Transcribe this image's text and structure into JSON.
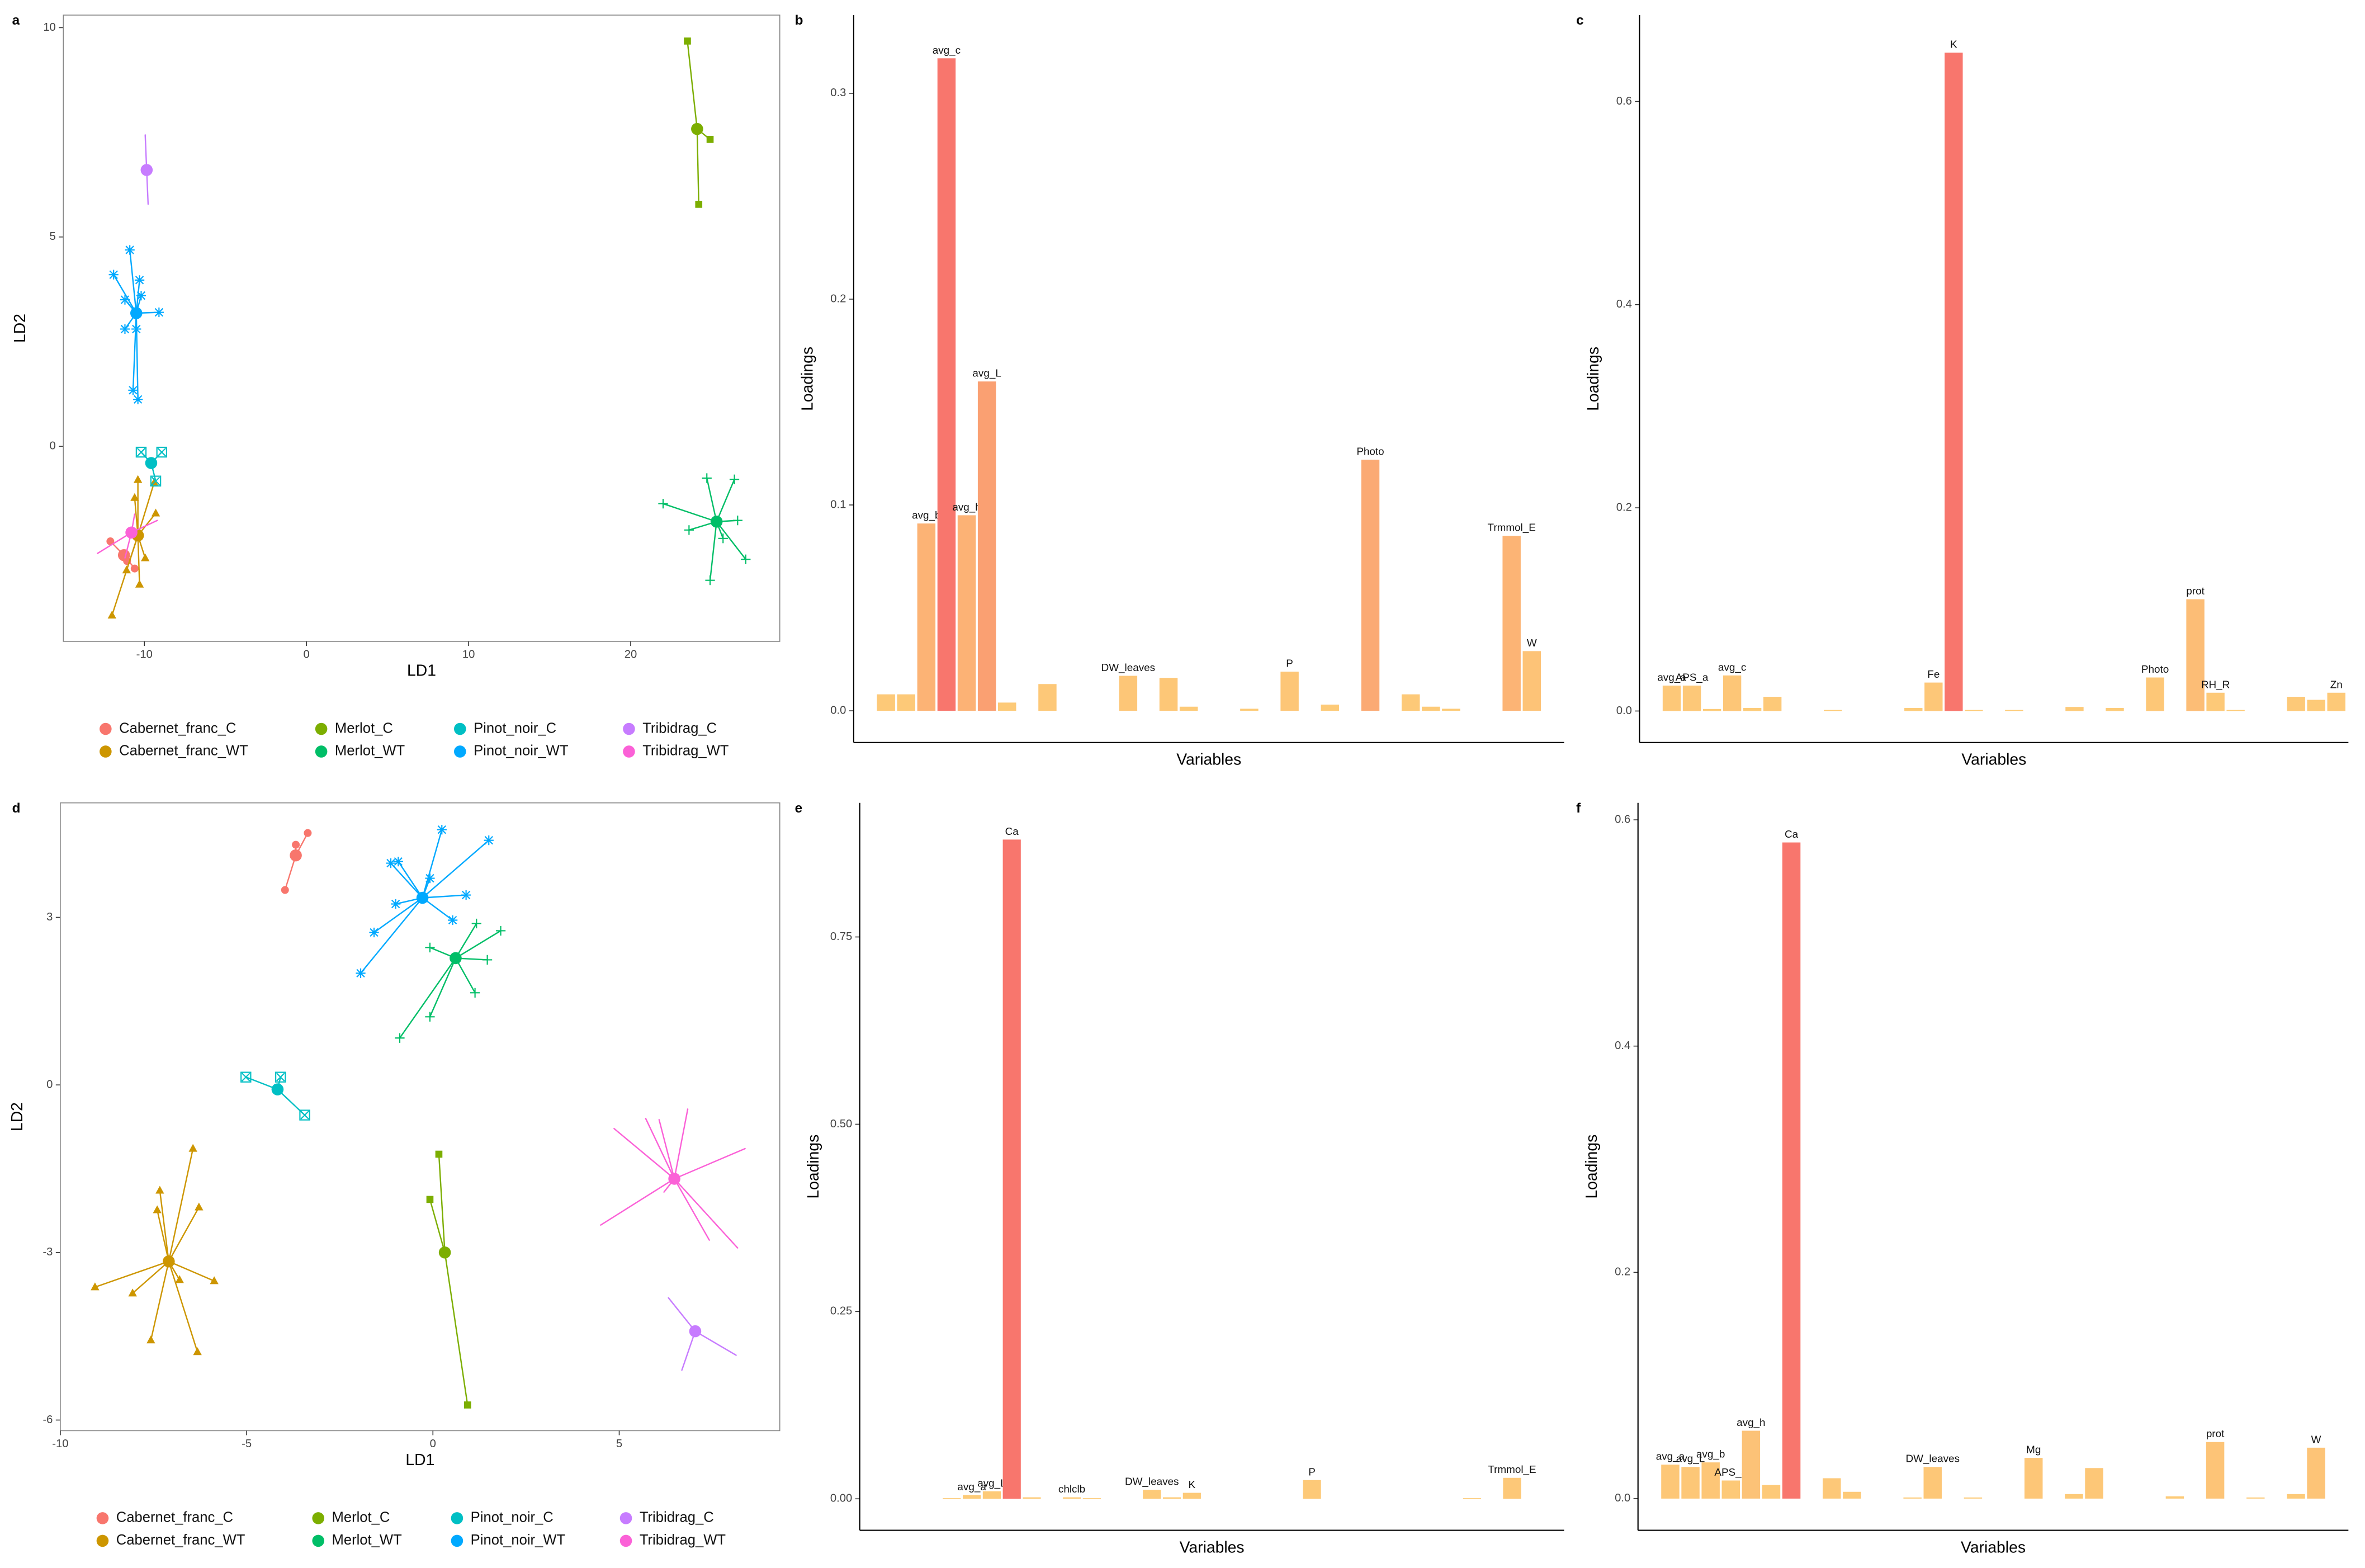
{
  "chart_data": [
    {
      "type": "scatter",
      "panel": "a",
      "xlabel": "LD1",
      "ylabel": "LD2",
      "xlim": [
        -15.0,
        29.2
      ],
      "ylim": [
        -4.66,
        10.3
      ],
      "xticks": [
        -10,
        0,
        10,
        20
      ],
      "yticks": [
        0,
        5,
        10
      ],
      "series": [
        {
          "name": "Cabernet_franc_C",
          "color": "#f8766d",
          "shape": "circle",
          "centroid_x": -11.26,
          "centroid_y": -2.6,
          "x": [
            -12.1,
            -10.6,
            -11.07
          ],
          "y": [
            -2.27,
            -2.92,
            -2.74
          ]
        },
        {
          "name": "Cabernet_franc_WT",
          "color": "#cd9600",
          "shape": "triangle",
          "centroid_x": -10.4,
          "centroid_y": -2.13,
          "x": [
            -10.4,
            -9.4,
            -9.3,
            -10.6,
            -9.95,
            -10.3,
            -12.0,
            -11.1
          ],
          "y": [
            -0.8,
            -0.87,
            -1.6,
            -1.23,
            -2.67,
            -3.3,
            -4.04,
            -2.96
          ]
        },
        {
          "name": "Merlot_C",
          "color": "#7cae00",
          "shape": "square",
          "centroid_x": 24.1,
          "centroid_y": 7.58,
          "x": [
            23.5,
            24.9,
            24.2
          ],
          "y": [
            9.68,
            7.33,
            5.78
          ]
        },
        {
          "name": "Merlot_WT",
          "color": "#00be67",
          "shape": "plus",
          "centroid_x": 25.3,
          "centroid_y": -1.8,
          "x": [
            22.0,
            24.7,
            26.4,
            26.6,
            27.1,
            24.9,
            23.6,
            25.7
          ],
          "y": [
            -1.37,
            -0.76,
            -0.79,
            -1.77,
            -2.7,
            -3.2,
            -2.0,
            -2.2
          ]
        },
        {
          "name": "Pinot_noir_C",
          "color": "#00bfc4",
          "shape": "square-cross",
          "centroid_x": -9.58,
          "centroid_y": -0.4,
          "x": [
            -10.2,
            -8.93,
            -9.3
          ],
          "y": [
            -0.14,
            -0.14,
            -0.83
          ]
        },
        {
          "name": "Pinot_noir_WT",
          "color": "#00a9ff",
          "shape": "asterisk",
          "centroid_x": -10.5,
          "centroid_y": 3.18,
          "x": [
            -10.9,
            -11.9,
            -10.3,
            -11.2,
            -10.2,
            -9.1,
            -11.2,
            -10.5,
            -10.7,
            -10.4
          ],
          "y": [
            4.69,
            4.1,
            3.97,
            3.5,
            3.6,
            3.2,
            2.8,
            2.8,
            1.34,
            1.12
          ]
        },
        {
          "name": "Tribidrag_C",
          "color": "#c77cff",
          "shape": "none",
          "centroid_x": -9.86,
          "centroid_y": 6.6,
          "x": [
            -9.95,
            -9.77
          ],
          "y": [
            7.44,
            5.78
          ]
        },
        {
          "name": "Tribidrag_WT",
          "color": "#fb61d7",
          "shape": "none",
          "centroid_x": -10.8,
          "centroid_y": -2.06,
          "x": [
            -12.9,
            -9.2,
            -10.6,
            -11.2
          ],
          "y": [
            -2.56,
            -1.77,
            -1.62,
            -2.67
          ]
        }
      ]
    },
    {
      "type": "bar",
      "panel": "b",
      "xlabel": "Variables",
      "ylabel": "Loadings",
      "ylim": [
        -0.0154,
        0.338
      ],
      "yticks": [
        {
          "value": 0,
          "label": "0.0"
        },
        {
          "value": 0.1,
          "label": "0.1"
        },
        {
          "value": 0.2,
          "label": "0.2"
        },
        {
          "value": 0.3,
          "label": "0.3"
        }
      ],
      "fill_scale": [
        "#fdcb78",
        "#f8766d"
      ],
      "categories": [
        null,
        null,
        null,
        "avg_b",
        "avg_c",
        "avg_h",
        "avg_L",
        null,
        null,
        null,
        null,
        null,
        null,
        "DW_leaves",
        null,
        null,
        null,
        null,
        null,
        null,
        null,
        "P",
        null,
        null,
        null,
        "Photo",
        null,
        null,
        null,
        null,
        null,
        null,
        "Trmmol_E",
        "W",
        null
      ],
      "values": [
        0,
        0.008,
        0.008,
        0.091,
        0.317,
        0.095,
        0.16,
        0.004,
        0,
        0.013,
        0,
        0,
        0,
        0.017,
        0,
        0.016,
        0.002,
        0,
        0,
        0.001,
        0,
        0.019,
        0,
        0.003,
        0,
        0.122,
        0,
        0.008,
        0.002,
        0.001,
        0,
        0,
        0.085,
        0.029,
        0
      ]
    },
    {
      "type": "bar",
      "panel": "c",
      "xlabel": "Variables",
      "ylabel": "Loadings",
      "ylim": [
        -0.031,
        0.685
      ],
      "yticks": [
        {
          "value": 0,
          "label": "0.0"
        },
        {
          "value": 0.2,
          "label": "0.2"
        },
        {
          "value": 0.4,
          "label": "0.4"
        },
        {
          "value": 0.6,
          "label": "0.6"
        }
      ],
      "fill_scale": [
        "#fdcb78",
        "#f8766d"
      ],
      "categories": [
        null,
        "avg_a",
        "APS_a",
        null,
        "avg_c",
        null,
        null,
        null,
        null,
        null,
        null,
        null,
        null,
        null,
        "Fe",
        "K",
        null,
        null,
        null,
        null,
        null,
        null,
        null,
        null,
        null,
        "Photo",
        null,
        "prot",
        "RH_R",
        null,
        null,
        null,
        null,
        null,
        "Zn"
      ],
      "values": [
        0,
        0.025,
        0.025,
        0.002,
        0.035,
        0.003,
        0.014,
        0,
        0,
        0.001,
        0,
        0,
        0,
        0.003,
        0.028,
        0.648,
        0.001,
        0,
        0.001,
        0,
        0,
        0.004,
        0,
        0.003,
        0,
        0.033,
        0,
        0.11,
        0.018,
        0.001,
        0,
        0,
        0.014,
        0.011,
        0.018
      ]
    },
    {
      "type": "scatter",
      "panel": "d",
      "xlabel": "LD1",
      "ylabel": "LD2",
      "xlim": [
        -10.0,
        9.31
      ],
      "ylim": [
        -6.19,
        5.05
      ],
      "xticks": [
        -10,
        -5,
        0,
        5
      ],
      "yticks": [
        -6,
        -3,
        0,
        3
      ],
      "series": [
        {
          "name": "Cabernet_franc_C",
          "color": "#f8766d",
          "shape": "circle",
          "centroid_x": -3.68,
          "centroid_y": 4.11,
          "x": [
            -3.97,
            -3.68,
            -3.36
          ],
          "y": [
            3.49,
            4.3,
            4.51
          ]
        },
        {
          "name": "Cabernet_franc_WT",
          "color": "#cd9600",
          "shape": "triangle",
          "centroid_x": -7.09,
          "centroid_y": -3.16,
          "x": [
            -9.07,
            -8.06,
            -7.57,
            -7.33,
            -7.4,
            -6.44,
            -6.28,
            -5.87,
            -6.32,
            -6.8
          ],
          "y": [
            -3.62,
            -3.73,
            -4.57,
            -1.89,
            -2.24,
            -1.14,
            -2.19,
            -3.51,
            -4.78,
            -3.49
          ]
        },
        {
          "name": "Merlot_C",
          "color": "#7cae00",
          "shape": "square",
          "centroid_x": 0.32,
          "centroid_y": -3.0,
          "x": [
            0.16,
            -0.08,
            0.93
          ],
          "y": [
            -1.24,
            -2.05,
            -5.73
          ]
        },
        {
          "name": "Merlot_WT",
          "color": "#00be67",
          "shape": "plus",
          "centroid_x": 0.61,
          "centroid_y": 2.27,
          "x": [
            -0.89,
            -0.08,
            1.13,
            1.46,
            1.82,
            1.17,
            -0.08
          ],
          "y": [
            0.84,
            1.22,
            1.65,
            2.24,
            2.76,
            2.89,
            2.46
          ]
        },
        {
          "name": "Pinot_noir_C",
          "color": "#00bfc4",
          "shape": "square-cross",
          "centroid_x": -4.17,
          "centroid_y": -0.08,
          "x": [
            -5.02,
            -4.09,
            -3.44
          ],
          "y": [
            0.14,
            0.14,
            -0.54
          ]
        },
        {
          "name": "Pinot_noir_WT",
          "color": "#00a9ff",
          "shape": "asterisk",
          "centroid_x": -0.28,
          "centroid_y": 3.35,
          "x": [
            -1.94,
            -1.58,
            -1.13,
            -0.93,
            0.24,
            1.5,
            0.89,
            0.53,
            -1.0,
            -0.08
          ],
          "y": [
            2.0,
            2.73,
            3.97,
            4.0,
            4.57,
            4.38,
            3.4,
            2.95,
            3.24,
            3.7
          ]
        },
        {
          "name": "Tribidrag_C",
          "color": "#c77cff",
          "shape": "none",
          "centroid_x": 7.04,
          "centroid_y": -4.41,
          "x": [
            6.32,
            6.68,
            8.14
          ],
          "y": [
            -3.81,
            -5.11,
            -4.84
          ]
        },
        {
          "name": "Tribidrag_WT",
          "color": "#fb61d7",
          "shape": "none",
          "centroid_x": 6.48,
          "centroid_y": -1.68,
          "x": [
            4.5,
            4.86,
            5.71,
            6.07,
            6.84,
            8.38,
            8.18,
            7.42,
            6.2
          ],
          "y": [
            -2.51,
            -0.78,
            -0.6,
            -0.62,
            -0.43,
            -1.14,
            -2.92,
            -2.78,
            -1.92
          ]
        }
      ]
    },
    {
      "type": "bar",
      "panel": "e",
      "xlabel": "Variables",
      "ylabel": "Loadings",
      "ylim": [
        -0.042,
        0.929
      ],
      "yticks": [
        {
          "value": 0,
          "label": "0.00"
        },
        {
          "value": 0.25,
          "label": "0.25"
        },
        {
          "value": 0.5,
          "label": "0.50"
        },
        {
          "value": 0.75,
          "label": "0.75"
        }
      ],
      "fill_scale": [
        "#fdcb78",
        "#f8766d"
      ],
      "categories": [
        null,
        null,
        null,
        null,
        null,
        "avg_a",
        "avg_L",
        "Ca",
        null,
        null,
        "chlclb",
        null,
        null,
        null,
        "DW_leaves",
        null,
        "K",
        null,
        null,
        null,
        null,
        null,
        "P",
        null,
        null,
        null,
        null,
        null,
        null,
        null,
        null,
        null,
        "Trmmol_E",
        null,
        null
      ],
      "values": [
        0,
        0,
        0,
        0,
        0.001,
        0.005,
        0.01,
        0.88,
        0.002,
        0,
        0.002,
        0.001,
        0,
        0,
        0.012,
        0.002,
        0.008,
        0,
        0,
        0,
        0,
        0,
        0.025,
        0,
        0,
        0,
        0,
        0,
        0,
        0,
        0.001,
        0,
        0.028,
        0,
        0
      ]
    },
    {
      "type": "bar",
      "panel": "f",
      "xlabel": "Variables",
      "ylabel": "Loadings",
      "ylim": [
        -0.028,
        0.615
      ],
      "yticks": [
        {
          "value": 0,
          "label": "0.0"
        },
        {
          "value": 0.2,
          "label": "0.2"
        },
        {
          "value": 0.4,
          "label": "0.4"
        },
        {
          "value": 0.6,
          "label": "0.6"
        }
      ],
      "fill_scale": [
        "#fdcb78",
        "#f8766d"
      ],
      "categories": [
        null,
        "avg_a",
        "avg_L",
        "avg_b",
        "APS_a",
        "avg_h",
        null,
        "Ca",
        null,
        null,
        null,
        null,
        null,
        null,
        "DW_leaves",
        null,
        null,
        null,
        null,
        "Mg",
        null,
        null,
        null,
        null,
        null,
        null,
        null,
        null,
        "prot",
        null,
        null,
        null,
        null,
        "W",
        null
      ],
      "values": [
        0,
        0.03,
        0.028,
        0.032,
        0.016,
        0.06,
        0.012,
        0.58,
        0,
        0.018,
        0.006,
        0,
        0,
        0.001,
        0.028,
        0,
        0.001,
        0,
        0,
        0.036,
        0,
        0.004,
        0.027,
        0,
        0,
        0,
        0.002,
        0,
        0.05,
        0,
        0.001,
        0,
        0.004,
        0.045,
        0
      ]
    }
  ]
}
